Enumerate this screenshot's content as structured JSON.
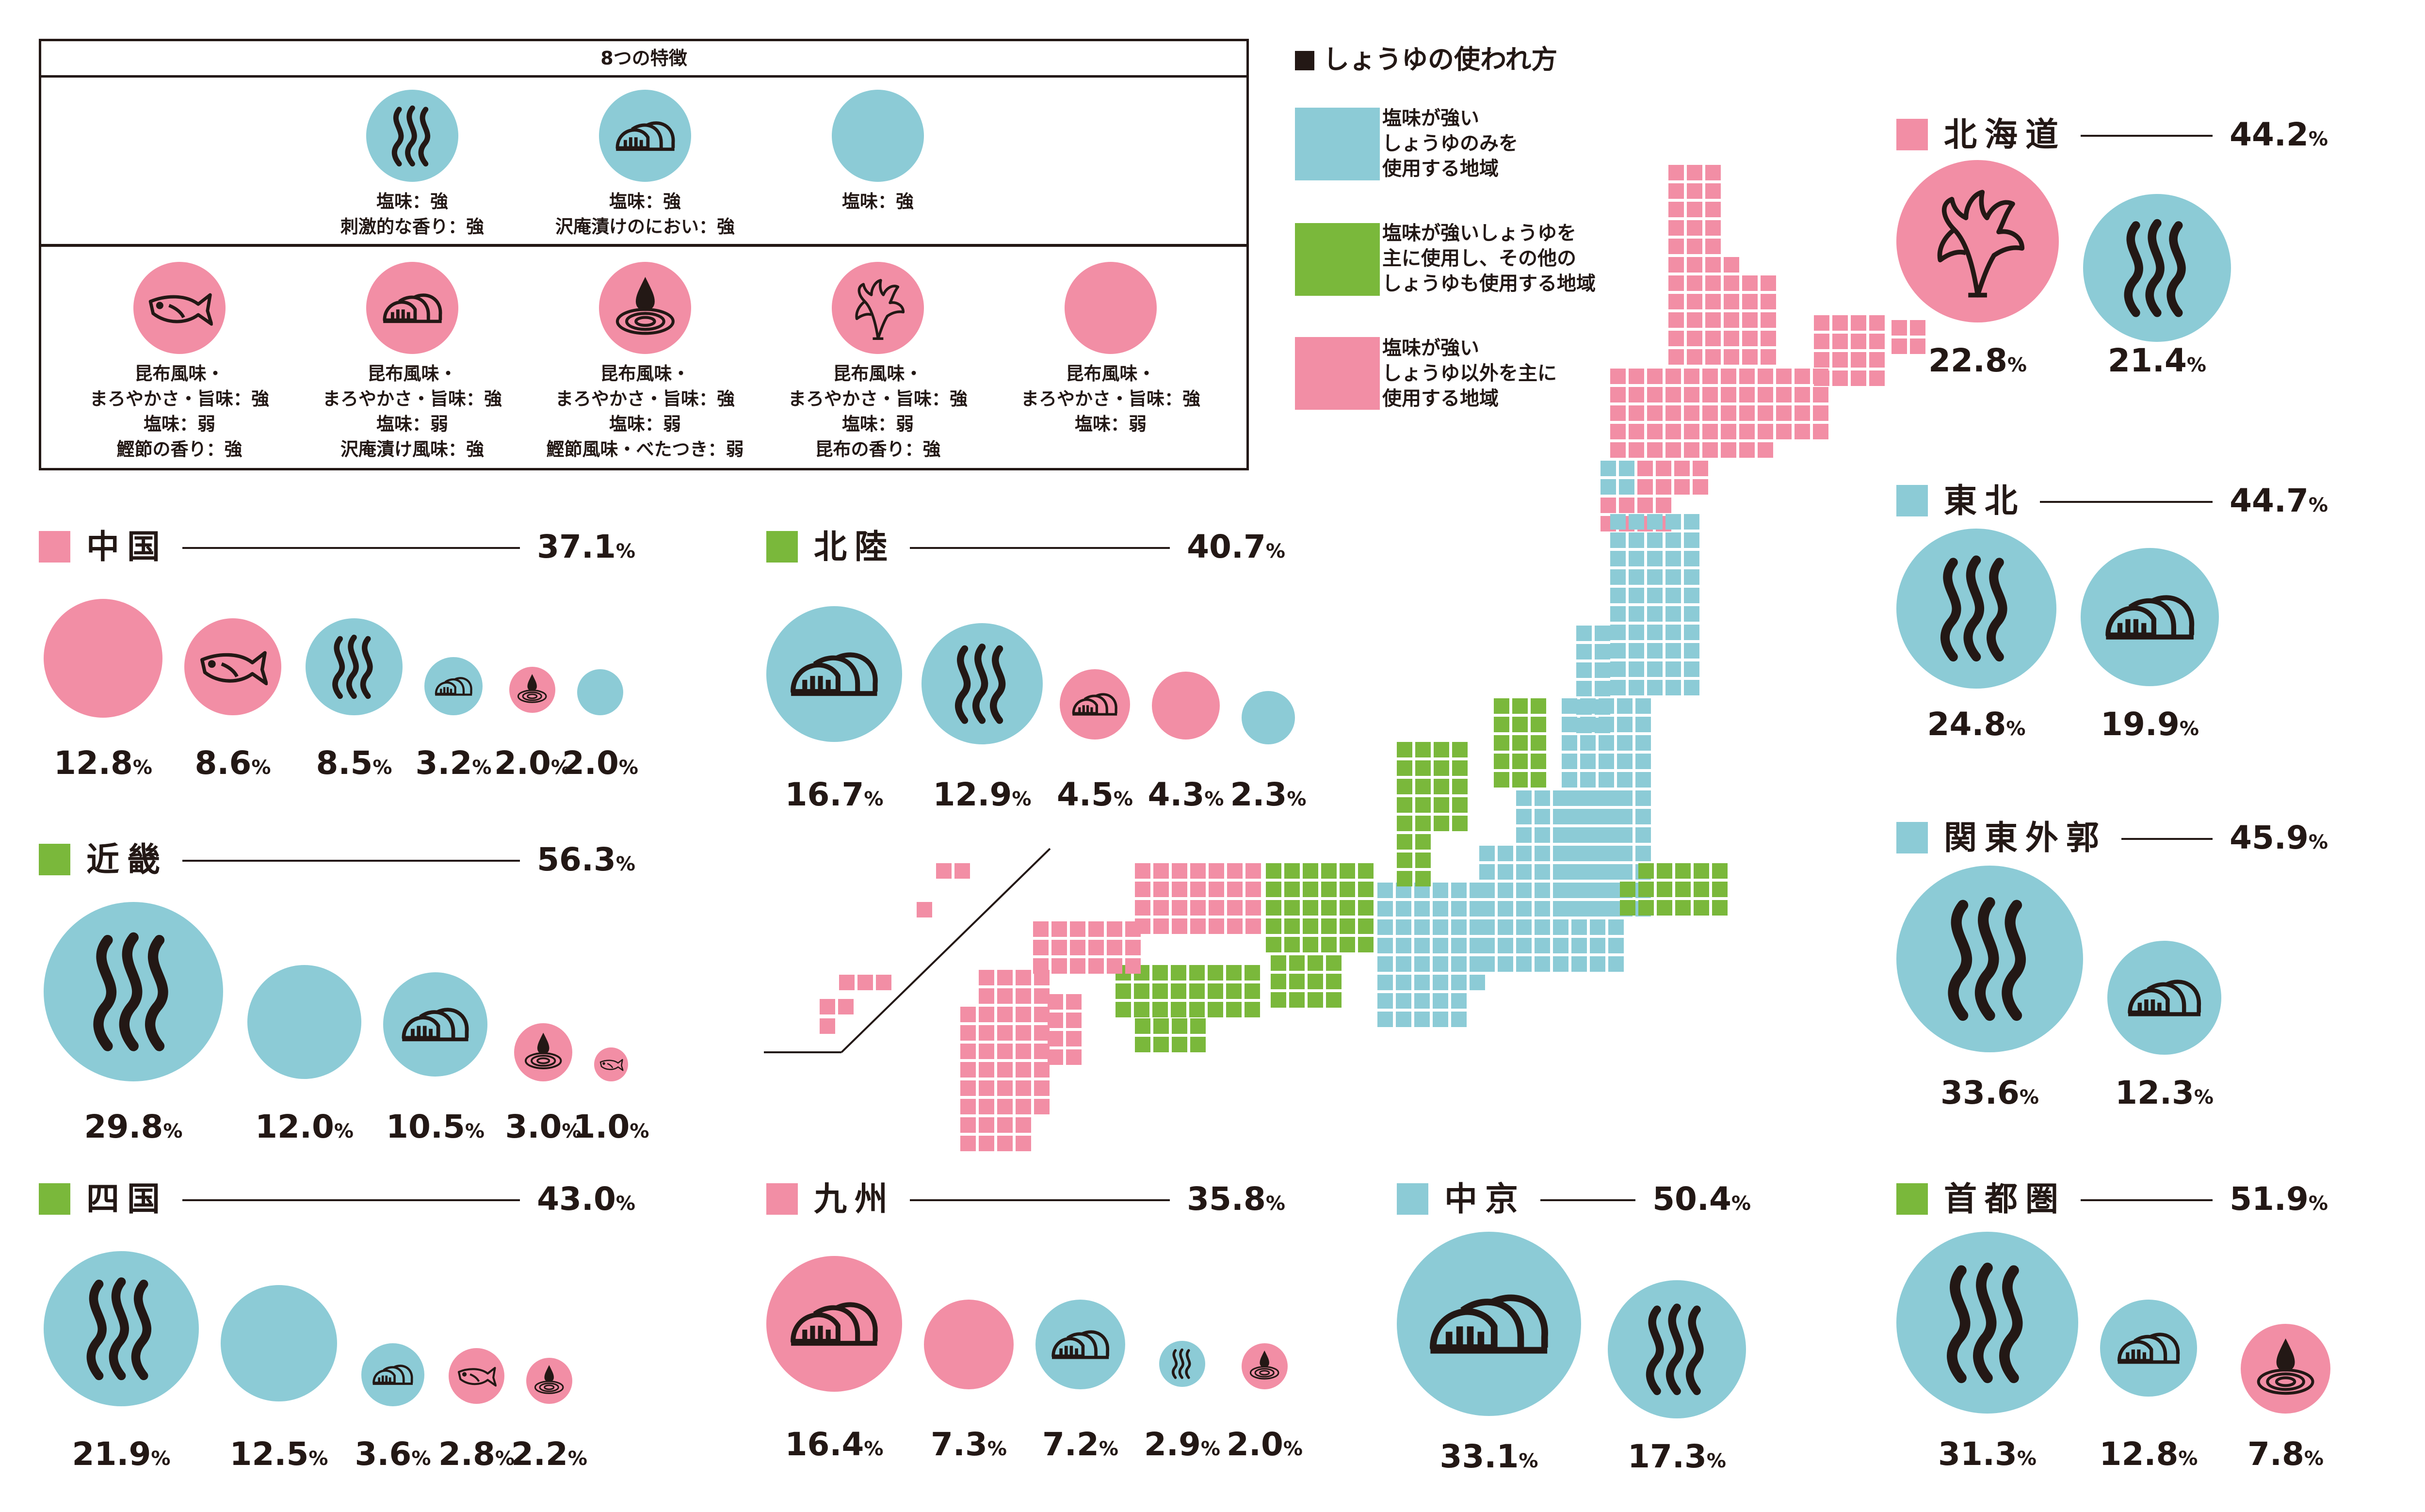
{
  "colors": {
    "cyan": "#8ccbd6",
    "pink": "#f28ea5",
    "green": "#7ab83b",
    "ink": "#231815"
  },
  "legend": {
    "title": "8つの特徴",
    "top_row": [
      {
        "icon": "steam-icon",
        "lines": [
          "塩味：強",
          "刺激的な香り：強"
        ]
      },
      {
        "icon": "pickles-icon",
        "lines": [
          "塩味：強",
          "沢庵漬けのにおい：強"
        ]
      },
      {
        "icon": "none",
        "lines": [
          "塩味：強"
        ]
      }
    ],
    "bottom_row": [
      {
        "icon": "fish-icon",
        "lines": [
          "昆布風味・",
          "まろやかさ・旨味：強",
          "塩味：弱",
          "鰹節の香り：強"
        ]
      },
      {
        "icon": "pickles-icon",
        "lines": [
          "昆布風味・",
          "まろやかさ・旨味：強",
          "塩味：弱",
          "沢庵漬け風味：強"
        ]
      },
      {
        "icon": "drop-icon",
        "lines": [
          "昆布風味・",
          "まろやかさ・旨味：強",
          "塩味：弱",
          "鰹節風味・べたつき：弱"
        ]
      },
      {
        "icon": "kelp-icon",
        "lines": [
          "昆布風味・",
          "まろやかさ・旨味：強",
          "塩味：弱",
          "昆布の香り：強"
        ]
      },
      {
        "icon": "none",
        "lines": [
          "昆布風味・",
          "まろやかさ・旨味：強",
          "塩味：弱"
        ]
      }
    ]
  },
  "map_legend": {
    "title": "しょうゆの使われ方",
    "items": [
      {
        "color": "cyan",
        "lines": [
          "塩味が強い",
          "しょうゆのみを",
          "使用する地域"
        ]
      },
      {
        "color": "green",
        "lines": [
          "塩味が強いしょうゆを",
          "主に使用し、その他の",
          "しょうゆも使用する地域"
        ]
      },
      {
        "color": "pink",
        "lines": [
          "塩味が強い",
          "しょうゆ以外を主に",
          "使用する地域"
        ]
      }
    ]
  },
  "regions": [
    {
      "id": "hokkaido",
      "name": "北海道",
      "usage": "pink",
      "share": "44.2",
      "unit": "%",
      "bubbles": [
        {
          "color": "pink",
          "icon": "kelp-icon",
          "value": "22.8"
        },
        {
          "color": "cyan",
          "icon": "steam-icon",
          "value": "21.4"
        }
      ]
    },
    {
      "id": "tohoku",
      "name": "東北",
      "usage": "cyan",
      "share": "44.7",
      "unit": "%",
      "bubbles": [
        {
          "color": "cyan",
          "icon": "steam-icon",
          "value": "24.8"
        },
        {
          "color": "cyan",
          "icon": "pickles-icon",
          "value": "19.9"
        }
      ]
    },
    {
      "id": "kanto-gaikaku",
      "name": "関東外郭",
      "usage": "cyan",
      "share": "45.9",
      "unit": "%",
      "bubbles": [
        {
          "color": "cyan",
          "icon": "steam-icon",
          "value": "33.6"
        },
        {
          "color": "cyan",
          "icon": "pickles-icon",
          "value": "12.3"
        }
      ]
    },
    {
      "id": "shutoken",
      "name": "首都圏",
      "usage": "green",
      "share": "51.9",
      "unit": "%",
      "bubbles": [
        {
          "color": "cyan",
          "icon": "steam-icon",
          "value": "31.3"
        },
        {
          "color": "cyan",
          "icon": "pickles-icon",
          "value": "12.8"
        },
        {
          "color": "pink",
          "icon": "drop-icon",
          "value": "7.8"
        }
      ]
    },
    {
      "id": "chukyo",
      "name": "中京",
      "usage": "cyan",
      "share": "50.4",
      "unit": "%",
      "bubbles": [
        {
          "color": "cyan",
          "icon": "pickles-icon",
          "value": "33.1"
        },
        {
          "color": "cyan",
          "icon": "steam-icon",
          "value": "17.3"
        }
      ]
    },
    {
      "id": "chugoku",
      "name": "中国",
      "usage": "pink",
      "share": "37.1",
      "unit": "%",
      "bubbles": [
        {
          "color": "pink",
          "icon": "none",
          "value": "12.8"
        },
        {
          "color": "pink",
          "icon": "fish-icon",
          "value": "8.6"
        },
        {
          "color": "cyan",
          "icon": "steam-icon",
          "value": "8.5"
        },
        {
          "color": "cyan",
          "icon": "pickles-icon",
          "value": "3.2"
        },
        {
          "color": "pink",
          "icon": "drop-icon",
          "value": "2.0"
        },
        {
          "color": "cyan",
          "icon": "none",
          "value": "2.0"
        }
      ]
    },
    {
      "id": "hokuriku",
      "name": "北陸",
      "usage": "green",
      "share": "40.7",
      "unit": "%",
      "bubbles": [
        {
          "color": "cyan",
          "icon": "pickles-icon",
          "value": "16.7"
        },
        {
          "color": "cyan",
          "icon": "steam-icon",
          "value": "12.9"
        },
        {
          "color": "pink",
          "icon": "pickles-icon",
          "value": "4.5"
        },
        {
          "color": "pink",
          "icon": "none",
          "value": "4.3"
        },
        {
          "color": "cyan",
          "icon": "none",
          "value": "2.3"
        }
      ]
    },
    {
      "id": "kinki",
      "name": "近畿",
      "usage": "green",
      "share": "56.3",
      "unit": "%",
      "bubbles": [
        {
          "color": "cyan",
          "icon": "steam-icon",
          "value": "29.8"
        },
        {
          "color": "cyan",
          "icon": "none",
          "value": "12.0"
        },
        {
          "color": "cyan",
          "icon": "pickles-icon",
          "value": "10.5"
        },
        {
          "color": "pink",
          "icon": "drop-icon",
          "value": "3.0"
        },
        {
          "color": "pink",
          "icon": "fish-icon",
          "value": "1.0"
        }
      ]
    },
    {
      "id": "shikoku",
      "name": "四国",
      "usage": "green",
      "share": "43.0",
      "unit": "%",
      "bubbles": [
        {
          "color": "cyan",
          "icon": "steam-icon",
          "value": "21.9"
        },
        {
          "color": "cyan",
          "icon": "none",
          "value": "12.5"
        },
        {
          "color": "cyan",
          "icon": "pickles-icon",
          "value": "3.6"
        },
        {
          "color": "pink",
          "icon": "fish-icon",
          "value": "2.8"
        },
        {
          "color": "pink",
          "icon": "drop-icon",
          "value": "2.2"
        }
      ]
    },
    {
      "id": "kyushu",
      "name": "九州",
      "usage": "pink",
      "share": "35.8",
      "unit": "%",
      "bubbles": [
        {
          "color": "pink",
          "icon": "pickles-icon",
          "value": "16.4"
        },
        {
          "color": "pink",
          "icon": "none",
          "value": "7.3"
        },
        {
          "color": "cyan",
          "icon": "pickles-icon",
          "value": "7.2"
        },
        {
          "color": "cyan",
          "icon": "steam-icon",
          "value": "2.9"
        },
        {
          "color": "pink",
          "icon": "drop-icon",
          "value": "2.0"
        }
      ]
    }
  ]
}
